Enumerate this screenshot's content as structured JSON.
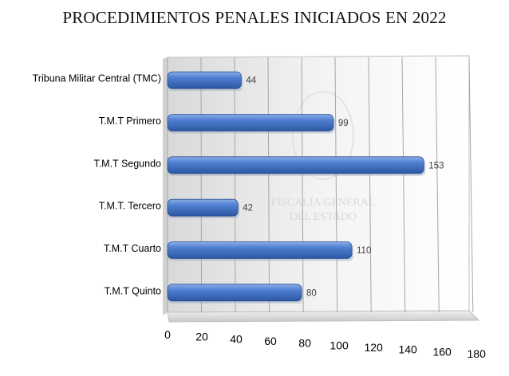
{
  "chart_data": {
    "type": "bar",
    "orientation": "horizontal",
    "title": "PROCEDIMIENTOS PENALES INICIADOS EN 2022",
    "categories": [
      "Tribuna Militar Central (TMC)",
      "T.M.T Primero",
      "T.M.T Segundo",
      "T.M.T. Tercero",
      "T.M.T Cuarto",
      "T.M.T Quinto"
    ],
    "values": [
      44,
      99,
      153,
      42,
      110,
      80
    ],
    "xlabel": "",
    "ylabel": "",
    "xlim": [
      0,
      180
    ],
    "x_ticks": [
      "0",
      "20",
      "40",
      "60",
      "80",
      "100",
      "120",
      "140",
      "160",
      "180"
    ],
    "grid": true,
    "bar_color": "#4472c4",
    "watermark": [
      "FISCALÍA GENERAL",
      "DEL ESTADO"
    ]
  }
}
